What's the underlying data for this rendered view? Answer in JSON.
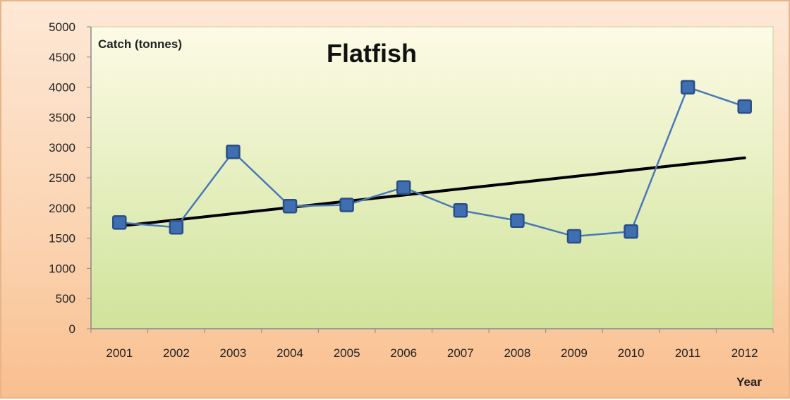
{
  "chart_data": {
    "type": "line",
    "title": "Flatfish",
    "ylabel": "Catch (tonnes)",
    "xlabel": "Year",
    "categories": [
      "2001",
      "2002",
      "2003",
      "2004",
      "2005",
      "2006",
      "2007",
      "2008",
      "2009",
      "2010",
      "2011",
      "2012"
    ],
    "series": [
      {
        "values": [
          1760,
          1680,
          2930,
          2030,
          2050,
          2340,
          1960,
          1790,
          1530,
          1610,
          4000,
          3680
        ]
      }
    ],
    "trendline": {
      "start": 1700,
      "end": 2830
    },
    "ylim": [
      0,
      5000
    ],
    "yticks": [
      0,
      500,
      1000,
      1500,
      2000,
      2500,
      3000,
      3500,
      4000,
      4500,
      5000
    ],
    "grid": false,
    "legend": "none",
    "colors": {
      "series_line": "#4a78b8",
      "marker_fill": "#3f6fb0",
      "marker_edge": "#2a4f88",
      "trend": "#000000",
      "plot_top": "#fdfbe6",
      "plot_bottom": "#cfe39a"
    }
  }
}
